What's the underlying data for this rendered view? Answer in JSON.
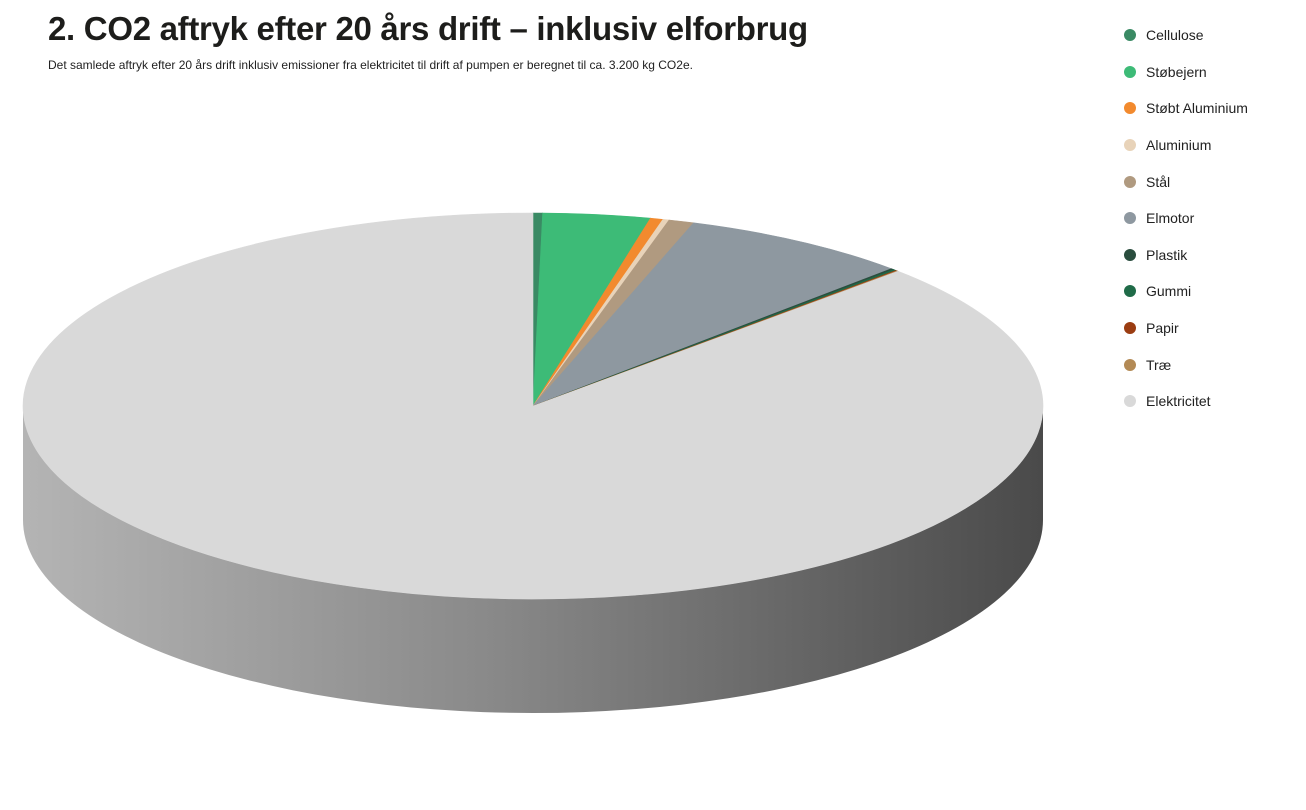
{
  "header": {
    "title": "2. CO2 aftryk efter 20 års drift – inklusiv elforbrug",
    "subtitle": "Det samlede aftryk efter 20 års drift inklusiv emissioner fra elektricitet til drift af pumpen er beregnet til ca. 3.200 kg CO2e."
  },
  "chart_data": {
    "type": "pie",
    "style": "3d",
    "title": "2. CO2 aftryk efter 20 års drift – inklusiv elforbrug",
    "subtitle": "Det samlede aftryk efter 20 års drift inklusiv emissioner fra elektricitet til drift af pumpen er beregnet til ca. 3.200 kg CO2e.",
    "legend_position": "top-right",
    "start_angle_deg": 0,
    "slices": [
      {
        "label": "Cellulose",
        "value": 0.3,
        "color": "#3a8a64"
      },
      {
        "label": "Støbejern",
        "value": 3.4,
        "color": "#3dbb77"
      },
      {
        "label": "Støbt Aluminium",
        "value": 0.4,
        "color": "#f28a2e"
      },
      {
        "label": "Aluminium",
        "value": 0.2,
        "color": "#e8d3b9"
      },
      {
        "label": "Stål",
        "value": 0.8,
        "color": "#b09a80"
      },
      {
        "label": "Elmotor",
        "value": 7.3,
        "color": "#8e98a0"
      },
      {
        "label": "Plastik",
        "value": 0.1,
        "color": "#2a4d3e"
      },
      {
        "label": "Gummi",
        "value": 0.1,
        "color": "#1f6b48"
      },
      {
        "label": "Papir",
        "value": 0.05,
        "color": "#9b3d12"
      },
      {
        "label": "Træ",
        "value": 0.05,
        "color": "#b38a55"
      },
      {
        "label": "Elektricitet",
        "value": 87.3,
        "color": "#d9d9d9"
      }
    ]
  }
}
